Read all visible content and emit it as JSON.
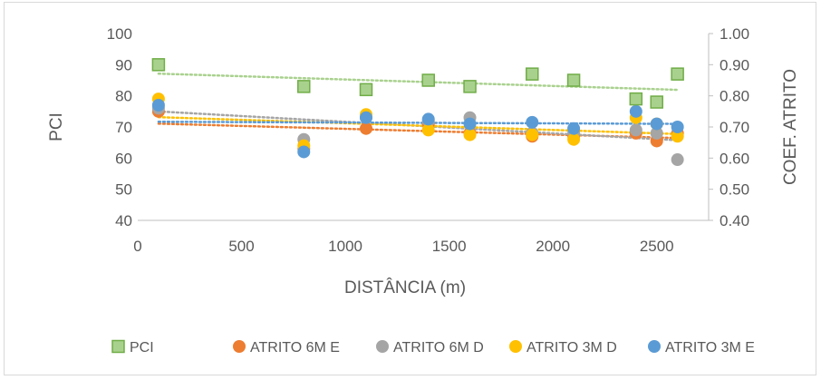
{
  "chart_data": {
    "type": "scatter",
    "title": "",
    "xlabel": "DISTÂNCIA (m)",
    "ylabel": "PCI",
    "y2label": "COEF. ATRITO",
    "xlim": [
      0,
      2750
    ],
    "ylim": [
      40,
      100
    ],
    "y2lim": [
      0.4,
      1.0
    ],
    "x_ticks": [
      "0",
      "500",
      "1000",
      "1500",
      "2000",
      "2500"
    ],
    "y_ticks": [
      "40",
      "50",
      "60",
      "70",
      "80",
      "90",
      "100"
    ],
    "y2_ticks": [
      "0.40",
      "0.50",
      "0.60",
      "0.70",
      "0.80",
      "0.90",
      "1.00"
    ],
    "grid": false,
    "legend_position": "bottom",
    "trendlines": "linear, dotted",
    "series": [
      {
        "name": "PCI",
        "axis": "left",
        "marker": "square",
        "color": "#a9d18e",
        "edge_color": "#70ad47",
        "trend_color": "#a9d18e",
        "points": [
          [
            100,
            90
          ],
          [
            800,
            83
          ],
          [
            1100,
            82
          ],
          [
            1400,
            85
          ],
          [
            1600,
            83
          ],
          [
            1900,
            87
          ],
          [
            2100,
            85
          ],
          [
            2400,
            79
          ],
          [
            2500,
            78
          ],
          [
            2600,
            87
          ]
        ]
      },
      {
        "name": "ATRITO 6M E",
        "axis": "right",
        "marker": "circle",
        "color": "#ed7d31",
        "trend_color": "#ed7d31",
        "points": [
          [
            100,
            0.75
          ],
          [
            800,
            0.63
          ],
          [
            1100,
            0.695
          ],
          [
            1400,
            0.71
          ],
          [
            1600,
            0.68
          ],
          [
            1900,
            0.67
          ],
          [
            2100,
            0.67
          ],
          [
            2400,
            0.68
          ],
          [
            2500,
            0.655
          ],
          [
            2600,
            0.68
          ]
        ]
      },
      {
        "name": "ATRITO 6M D",
        "axis": "right",
        "marker": "circle",
        "color": "#a5a5a5",
        "trend_color": "#a5a5a5",
        "points": [
          [
            100,
            0.76
          ],
          [
            800,
            0.66
          ],
          [
            1100,
            0.73
          ],
          [
            1400,
            0.72
          ],
          [
            1600,
            0.73
          ],
          [
            1900,
            0.68
          ],
          [
            2100,
            0.68
          ],
          [
            2400,
            0.69
          ],
          [
            2500,
            0.68
          ],
          [
            2600,
            0.595
          ]
        ]
      },
      {
        "name": "ATRITO 3M D",
        "axis": "right",
        "marker": "circle",
        "color": "#ffc000",
        "trend_color": "#ffc000",
        "points": [
          [
            100,
            0.79
          ],
          [
            800,
            0.64
          ],
          [
            1100,
            0.74
          ],
          [
            1400,
            0.69
          ],
          [
            1600,
            0.675
          ],
          [
            1900,
            0.675
          ],
          [
            2100,
            0.66
          ],
          [
            2400,
            0.73
          ],
          [
            2500,
            0.71
          ],
          [
            2600,
            0.67
          ]
        ]
      },
      {
        "name": "ATRITO 3M E",
        "axis": "right",
        "marker": "circle",
        "color": "#5b9bd5",
        "trend_color": "#5b9bd5",
        "points": [
          [
            100,
            0.77
          ],
          [
            800,
            0.62
          ],
          [
            1100,
            0.73
          ],
          [
            1400,
            0.725
          ],
          [
            1600,
            0.71
          ],
          [
            1900,
            0.715
          ],
          [
            2100,
            0.695
          ],
          [
            2400,
            0.75
          ],
          [
            2500,
            0.71
          ],
          [
            2600,
            0.7
          ]
        ]
      }
    ]
  }
}
